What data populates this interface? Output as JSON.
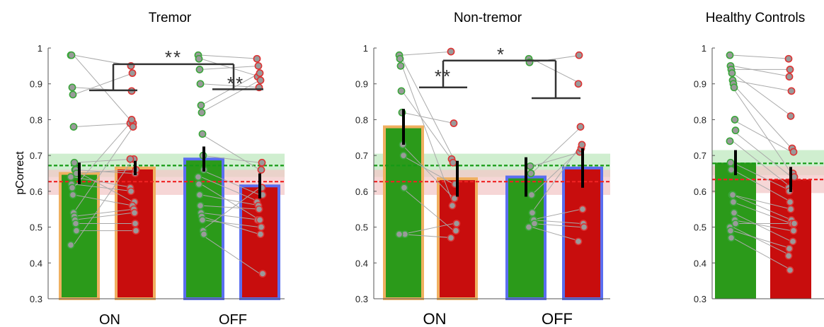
{
  "figure": {
    "ylabel": "pCorrect",
    "colors": {
      "green": "#2b9a1a",
      "red": "#c80d0d",
      "orange_outline": "#f0b060",
      "blue_outline": "#5a6ef0",
      "green_band": "#bfe8bf",
      "red_band": "#f3c8c8",
      "green_dash": "#159a15",
      "red_dash": "#ee2222",
      "dot_fill": "#9a9a9a",
      "line": "#aaaaaa"
    }
  },
  "chart_data": [
    {
      "type": "bar",
      "title": "Tremor",
      "ylabel": "pCorrect",
      "ylim": [
        0.3,
        1.0
      ],
      "yticks": [
        "0.3",
        "0.4",
        "0.5",
        "0.6",
        "0.7",
        "0.8",
        "0.9",
        "1"
      ],
      "xgroups": [
        "ON",
        "OFF"
      ],
      "bars": [
        {
          "condition": "ON",
          "color": "green",
          "outline": "orange",
          "value": 0.65,
          "err": 0.03
        },
        {
          "condition": "ON",
          "color": "red",
          "outline": "orange",
          "value": 0.665,
          "err": 0.02
        },
        {
          "condition": "OFF",
          "color": "green",
          "outline": "blue",
          "value": 0.69,
          "err": 0.035
        },
        {
          "condition": "OFF",
          "color": "red",
          "outline": "blue",
          "value": 0.615,
          "err": 0.035
        }
      ],
      "chance_bands": {
        "green": {
          "mean": 0.672,
          "lo": 0.64,
          "hi": 0.705
        },
        "red": {
          "mean": 0.627,
          "lo": 0.59,
          "hi": 0.66
        }
      },
      "pairs": [
        [
          [
            0.98,
            0.79
          ],
          [
            0.98,
            0.95
          ],
          [
            0.89,
            0.88
          ],
          [
            0.87,
            0.93
          ],
          [
            0.78,
            0.79
          ],
          [
            0.68,
            0.69
          ],
          [
            0.66,
            0.57
          ],
          [
            0.66,
            0.65
          ],
          [
            0.65,
            0.66
          ],
          [
            0.64,
            0.61
          ],
          [
            0.62,
            0.6
          ],
          [
            0.61,
            0.8
          ],
          [
            0.59,
            0.56
          ],
          [
            0.54,
            0.78
          ],
          [
            0.53,
            0.55
          ],
          [
            0.52,
            0.54
          ],
          [
            0.51,
            0.51
          ],
          [
            0.49,
            0.49
          ],
          [
            0.45,
            0.69
          ]
        ],
        [
          [
            0.98,
            0.97
          ],
          [
            0.97,
            0.92
          ],
          [
            0.94,
            0.95
          ],
          [
            0.9,
            0.89
          ],
          [
            0.84,
            0.93
          ],
          [
            0.82,
            0.91
          ],
          [
            0.76,
            0.66
          ],
          [
            0.7,
            0.68
          ],
          [
            0.66,
            0.59
          ],
          [
            0.64,
            0.57
          ],
          [
            0.62,
            0.52
          ],
          [
            0.59,
            0.56
          ],
          [
            0.56,
            0.55
          ],
          [
            0.54,
            0.52
          ],
          [
            0.53,
            0.48
          ],
          [
            0.52,
            0.5
          ],
          [
            0.49,
            0.61
          ],
          [
            0.48,
            0.37
          ]
        ]
      ],
      "significance": [
        {
          "between": [
            "ON",
            "OFF"
          ],
          "label": "**",
          "level": 0.955
        },
        {
          "between": [
            "OFF-green",
            "OFF-red"
          ],
          "label": "**",
          "level": 0.885
        }
      ]
    },
    {
      "type": "bar",
      "title": "Non-tremor",
      "ylim": [
        0.3,
        1.0
      ],
      "yticks": [
        "0.3",
        "0.4",
        "0.5",
        "0.6",
        "0.7",
        "0.8",
        "0.9",
        "1"
      ],
      "xgroups": [
        "ON",
        "OFF"
      ],
      "bars": [
        {
          "condition": "ON",
          "color": "green",
          "outline": "orange",
          "value": 0.78,
          "err": 0.05
        },
        {
          "condition": "ON",
          "color": "red",
          "outline": "orange",
          "value": 0.635,
          "err": 0.05
        },
        {
          "condition": "OFF",
          "color": "green",
          "outline": "blue",
          "value": 0.64,
          "err": 0.055
        },
        {
          "condition": "OFF",
          "color": "red",
          "outline": "blue",
          "value": 0.665,
          "err": 0.055
        }
      ],
      "chance_bands": {
        "green": {
          "mean": 0.672,
          "lo": 0.64,
          "hi": 0.705
        },
        "red": {
          "mean": 0.627,
          "lo": 0.59,
          "hi": 0.66
        }
      },
      "pairs": [
        [
          [
            0.98,
            0.99
          ],
          [
            0.97,
            0.69
          ],
          [
            0.95,
            0.56
          ],
          [
            0.88,
            0.68
          ],
          [
            0.82,
            0.79
          ],
          [
            0.73,
            0.58
          ],
          [
            0.7,
            0.62
          ],
          [
            0.61,
            0.49
          ],
          [
            0.48,
            0.51
          ],
          [
            0.48,
            0.47
          ]
        ],
        [
          [
            0.97,
            0.9
          ],
          [
            0.96,
            0.98
          ],
          [
            0.67,
            0.71
          ],
          [
            0.65,
            0.78
          ],
          [
            0.59,
            0.72
          ],
          [
            0.54,
            0.73
          ],
          [
            0.52,
            0.55
          ],
          [
            0.52,
            0.51
          ],
          [
            0.51,
            0.5
          ],
          [
            0.5,
            0.46
          ]
        ]
      ],
      "significance": [
        {
          "between": [
            "ON-green",
            "ON-red"
          ],
          "label": "**",
          "level": 0.89
        },
        {
          "between": [
            "ON",
            "OFF"
          ],
          "label": "*",
          "level": 0.965
        }
      ]
    },
    {
      "type": "bar",
      "title": "Healthy Controls",
      "ylim": [
        0.3,
        1.0
      ],
      "yticks": [
        "0.3",
        "0.4",
        "0.5",
        "0.6",
        "0.7",
        "0.8",
        "0.9",
        "1"
      ],
      "xgroups": [],
      "bars": [
        {
          "condition": "",
          "color": "green",
          "outline": "none",
          "value": 0.68,
          "err": 0.035
        },
        {
          "condition": "",
          "color": "red",
          "outline": "none",
          "value": 0.633,
          "err": 0.035
        }
      ],
      "chance_bands": {
        "green": {
          "mean": 0.678,
          "lo": 0.645,
          "hi": 0.715
        },
        "red": {
          "mean": 0.633,
          "lo": 0.595,
          "hi": 0.67
        }
      },
      "pairs": [
        [
          [
            0.98,
            0.97
          ],
          [
            0.95,
            0.92
          ],
          [
            0.94,
            0.94
          ],
          [
            0.93,
            0.81
          ],
          [
            0.91,
            0.88
          ],
          [
            0.9,
            0.72
          ],
          [
            0.89,
            0.65
          ],
          [
            0.8,
            0.71
          ],
          [
            0.77,
            0.64
          ],
          [
            0.74,
            0.61
          ],
          [
            0.68,
            0.6
          ],
          [
            0.66,
            0.57
          ],
          [
            0.59,
            0.55
          ],
          [
            0.59,
            0.52
          ],
          [
            0.57,
            0.51
          ],
          [
            0.54,
            0.46
          ],
          [
            0.52,
            0.49
          ],
          [
            0.51,
            0.51
          ],
          [
            0.5,
            0.42
          ],
          [
            0.49,
            0.44
          ],
          [
            0.47,
            0.38
          ]
        ]
      ],
      "significance": []
    }
  ]
}
